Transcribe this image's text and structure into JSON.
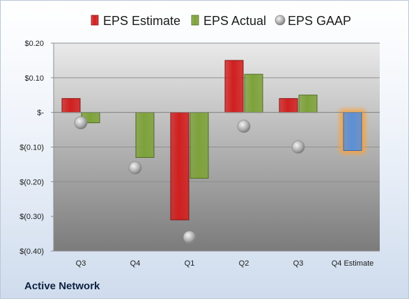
{
  "company": "Active Network",
  "colors": {
    "estimate": "#d11f1f",
    "actual": "#7ea23a",
    "gaap": "#a9a9a9",
    "future_estimate": "#5b8fd6",
    "highlight": "#f5a443"
  },
  "chart_data": {
    "type": "bar",
    "title": "",
    "xlabel": "",
    "ylabel": "",
    "ylim": [
      -0.4,
      0.2
    ],
    "y_ticks": [
      {
        "value": 0.2,
        "label": "$0.20"
      },
      {
        "value": 0.1,
        "label": "$0.10"
      },
      {
        "value": 0.0,
        "label": "$-"
      },
      {
        "value": -0.1,
        "label": "$(0.10)"
      },
      {
        "value": -0.2,
        "label": "$(0.20)"
      },
      {
        "value": -0.3,
        "label": "$(0.30)"
      },
      {
        "value": -0.4,
        "label": "$(0.40)"
      }
    ],
    "categories": [
      "Q3",
      "Q4",
      "Q1",
      "Q2",
      "Q3",
      "Q4 Estimate"
    ],
    "grid": true,
    "legend_position": "top",
    "series": [
      {
        "name": "EPS Estimate",
        "type": "bar",
        "values": [
          0.04,
          null,
          -0.31,
          0.15,
          0.04,
          -0.11
        ]
      },
      {
        "name": "EPS Actual",
        "type": "bar",
        "values": [
          -0.03,
          -0.13,
          -0.19,
          0.11,
          0.05,
          null
        ]
      },
      {
        "name": "EPS GAAP",
        "type": "scatter",
        "values": [
          -0.03,
          -0.16,
          -0.36,
          -0.04,
          -0.1,
          null
        ]
      }
    ]
  }
}
